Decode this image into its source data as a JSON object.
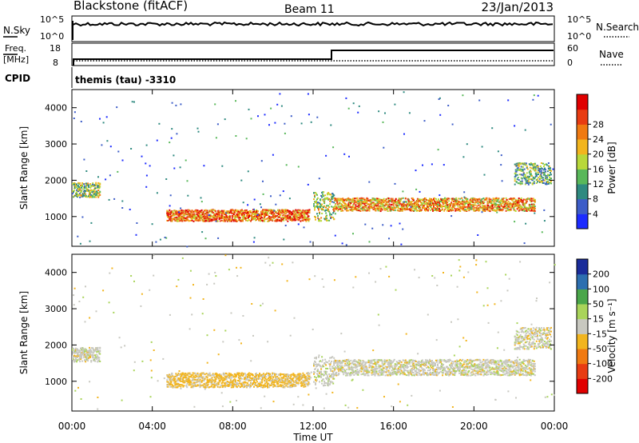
{
  "header": {
    "station": "Blackstone (fitACF)",
    "beam": "Beam 11",
    "date": "23/Jan/2013"
  },
  "noise_panel": {
    "left_label": "N.Sky",
    "right_label": "N.Search",
    "ticks_left": [
      "10^5",
      "10^0"
    ],
    "ticks_right": [
      "10^5",
      "10^0"
    ]
  },
  "freq_panel": {
    "left_label_line1": "Freq.",
    "left_label_line2": "[MHz]",
    "right_label": "Nave",
    "ticks_left": [
      "18",
      "8"
    ],
    "ticks_right": [
      "60",
      "0"
    ]
  },
  "cpid": {
    "label": "CPID",
    "value": "themis (tau) -3310"
  },
  "colors": {
    "power": [
      "#1c2bff",
      "#3d5dc8",
      "#2f8a80",
      "#59b85a",
      "#b8d83a",
      "#f2b51e",
      "#f07a12",
      "#e83c12",
      "#e00000"
    ],
    "velocity": [
      "#e00000",
      "#e83c12",
      "#f07a12",
      "#f2b51e",
      "#c8c8c0",
      "#a9d45a",
      "#4aa64a",
      "#2d6fb0",
      "#1a2c9a"
    ]
  },
  "chart_data": [
    {
      "type": "heatmap",
      "name": "power",
      "ylabel": "Slant Range [km]",
      "xlabel": "",
      "x_ticks": [
        "00:00",
        "04:00",
        "08:00",
        "12:00",
        "16:00",
        "20:00",
        "00:00"
      ],
      "xlim_hours": [
        0,
        24
      ],
      "y_ticks": [
        1000,
        2000,
        3000,
        4000
      ],
      "ylim_km": [
        180,
        4500
      ],
      "colorbar": {
        "label": "Power [dB]",
        "tick_labels": [
          "4",
          "8",
          "12",
          "16",
          "20",
          "24",
          "28"
        ],
        "range": [
          0,
          30
        ]
      },
      "echo_regions": [
        {
          "start_hour": 0.0,
          "end_hour": 1.4,
          "center_km": 1750,
          "halfwidth_km": 200,
          "power_db": 13
        },
        {
          "start_hour": 4.7,
          "end_hour": 11.8,
          "center_km": 1050,
          "halfwidth_km": 160,
          "power_db": 22
        },
        {
          "start_hour": 12.0,
          "end_hour": 13.0,
          "center_km": 1300,
          "halfwidth_km": 400,
          "power_db": 14
        },
        {
          "start_hour": 13.0,
          "end_hour": 23.0,
          "center_km": 1350,
          "halfwidth_km": 180,
          "power_db": 20
        },
        {
          "start_hour": 22.0,
          "end_hour": 23.8,
          "center_km": 2200,
          "halfwidth_km": 300,
          "power_db": 12
        }
      ]
    },
    {
      "type": "heatmap",
      "name": "velocity",
      "ylabel": "Slant Range [km]",
      "xlabel": "Time UT",
      "x_ticks": [
        "00:00",
        "04:00",
        "08:00",
        "12:00",
        "16:00",
        "20:00",
        "00:00"
      ],
      "xlim_hours": [
        0,
        24
      ],
      "y_ticks": [
        1000,
        2000,
        3000,
        4000
      ],
      "ylim_km": [
        180,
        4500
      ],
      "colorbar": {
        "label": "Velocity [m s⁻¹]",
        "tick_labels": [
          "-200",
          "-100",
          "-50",
          "-15",
          "15",
          "50",
          "100",
          "200"
        ],
        "range": [
          -250,
          250
        ]
      },
      "echo_regions": [
        {
          "start_hour": 0.0,
          "end_hour": 1.4,
          "center_km": 1750,
          "halfwidth_km": 200,
          "velocity": 0
        },
        {
          "start_hour": 4.7,
          "end_hour": 11.8,
          "center_km": 1050,
          "halfwidth_km": 200,
          "velocity": -40
        },
        {
          "start_hour": 12.0,
          "end_hour": 13.0,
          "center_km": 1300,
          "halfwidth_km": 400,
          "velocity": 5
        },
        {
          "start_hour": 13.0,
          "end_hour": 23.0,
          "center_km": 1400,
          "halfwidth_km": 220,
          "velocity": 0
        },
        {
          "start_hour": 22.0,
          "end_hour": 23.8,
          "center_km": 2200,
          "halfwidth_km": 300,
          "velocity": 0
        }
      ]
    }
  ]
}
